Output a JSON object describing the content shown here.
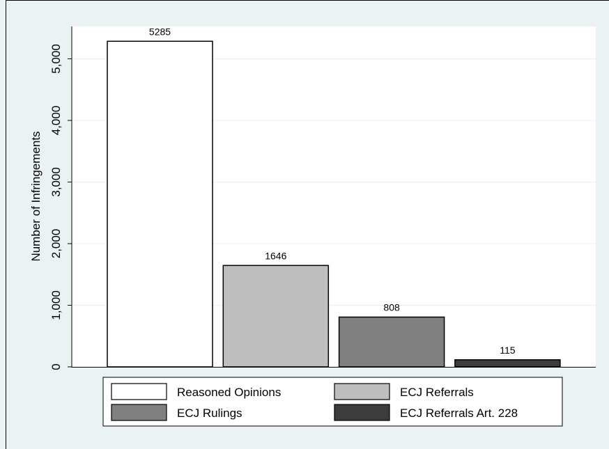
{
  "colors": {
    "outer_background": "#eaf2f3",
    "plot_background": "#ffffff",
    "gridline": "#eaf2f3",
    "bar_outline": "#000000",
    "frame": "#000000"
  },
  "chart_data": {
    "type": "bar",
    "title": "",
    "xlabel": "",
    "ylabel": "Number of Infringements",
    "ylim": [
      0,
      5500
    ],
    "yticks": [
      0,
      1000,
      2000,
      3000,
      4000,
      5000
    ],
    "ytick_labels": [
      "0",
      "1,000",
      "2,000",
      "3,000",
      "4,000",
      "5,000"
    ],
    "grid": true,
    "legend_position": "bottom",
    "series": [
      {
        "name": "Reasoned Opinions",
        "value": 5285,
        "label": "5285",
        "color": "#ffffff"
      },
      {
        "name": "ECJ Referrals",
        "value": 1646,
        "label": "1646",
        "color": "#bebebe"
      },
      {
        "name": "ECJ Rulings",
        "value": 808,
        "label": "808",
        "color": "#808080"
      },
      {
        "name": "ECJ Referrals Art. 228",
        "value": 115,
        "label": "115",
        "color": "#3c3c3c"
      }
    ]
  }
}
